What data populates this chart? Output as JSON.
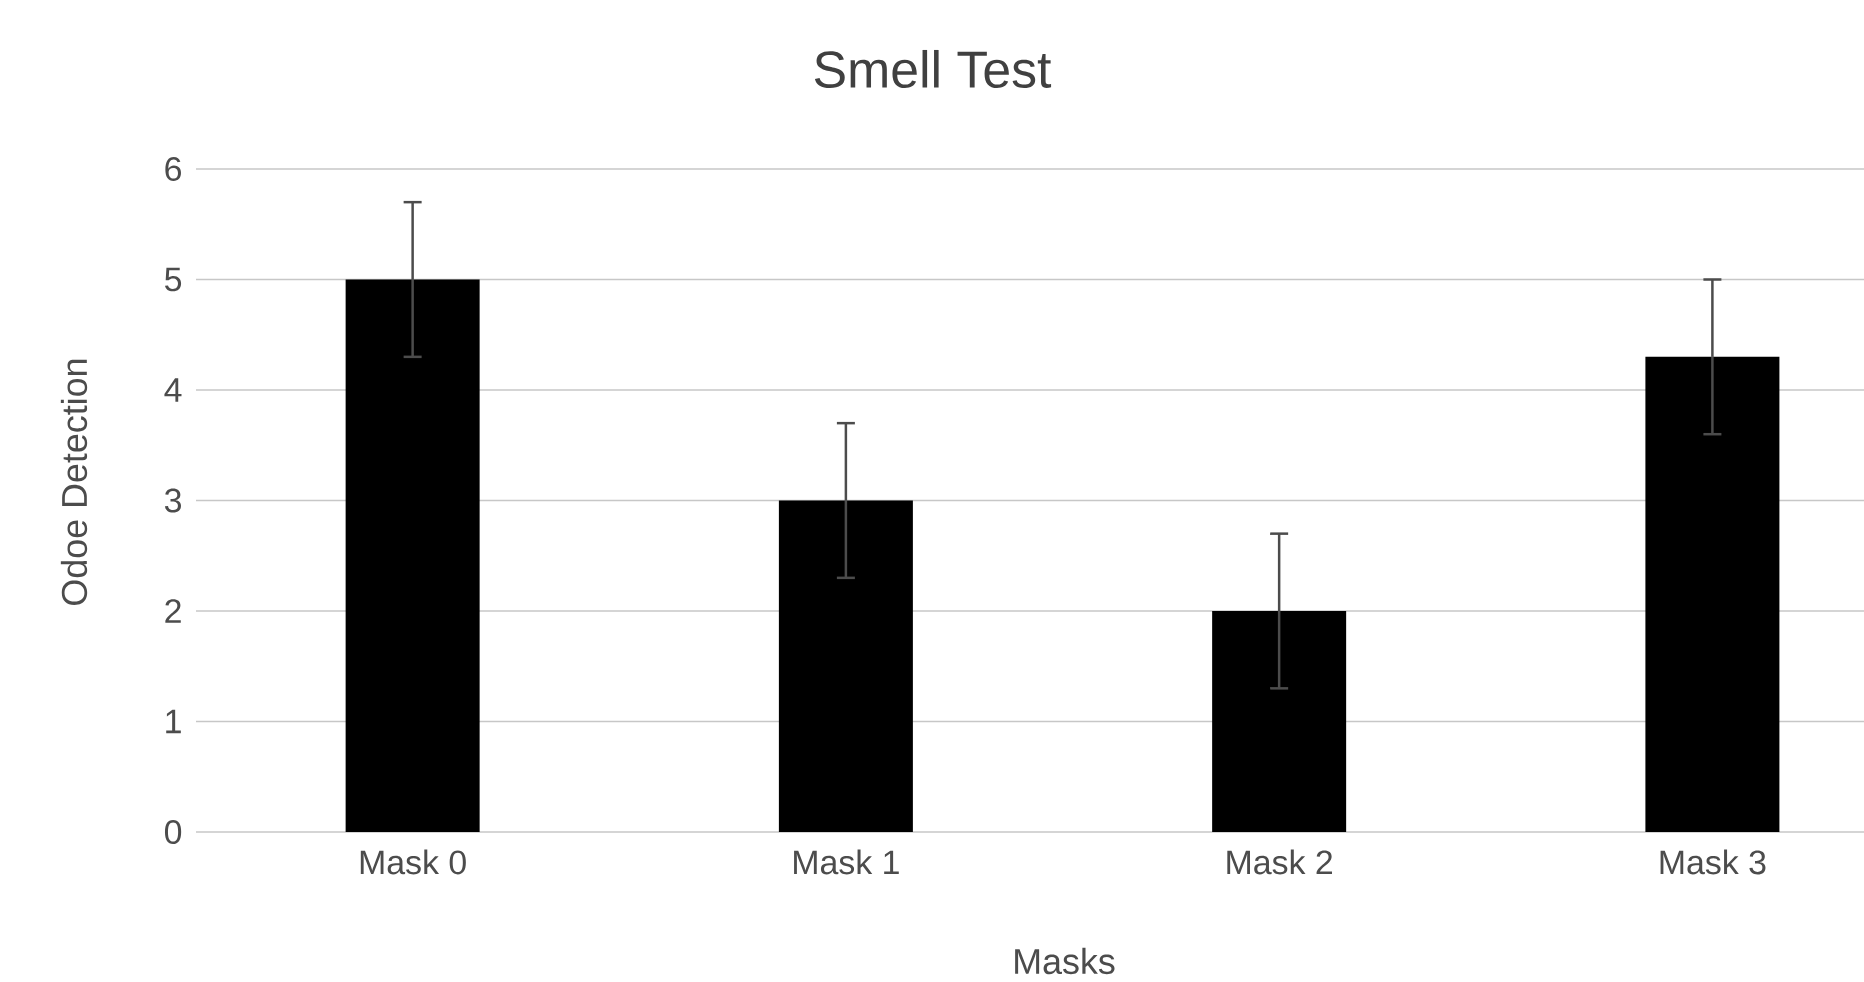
{
  "chart_data": {
    "type": "bar",
    "title": "Smell Test",
    "xlabel": "Masks",
    "ylabel": "Odoe Detection",
    "categories": [
      "Mask 0",
      "Mask 1",
      "Mask 2",
      "Mask 3"
    ],
    "values": [
      5,
      3,
      2,
      4.3
    ],
    "errors": [
      0.7,
      0.7,
      0.7,
      0.7
    ],
    "color": "#000000",
    "ylim": [
      0,
      6
    ],
    "yticks": [
      0,
      1,
      2,
      3,
      4,
      5,
      6
    ],
    "grid": "y"
  }
}
